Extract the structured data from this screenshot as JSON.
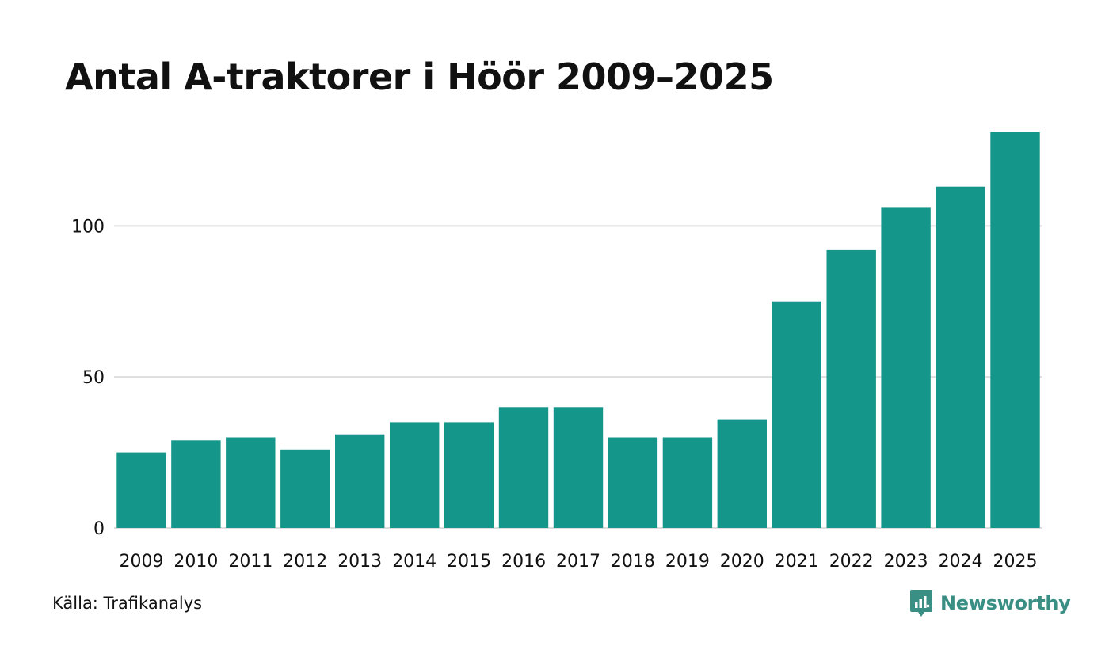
{
  "title": "Antal A-traktorer i Höör 2009–2025",
  "source": "Källa: Trafikanalys",
  "brand": {
    "name": "Newsworthy",
    "icon": "newsworthy-logo-icon",
    "color": "#3a8f84"
  },
  "colors": {
    "bar": "#14968a",
    "grid": "#dedede",
    "text": "#111111"
  },
  "chart_data": {
    "type": "bar",
    "title": "Antal A-traktorer i Höör 2009–2025",
    "xlabel": "",
    "ylabel": "",
    "categories": [
      "2009",
      "2010",
      "2011",
      "2012",
      "2013",
      "2014",
      "2015",
      "2016",
      "2017",
      "2018",
      "2019",
      "2020",
      "2021",
      "2022",
      "2023",
      "2024",
      "2025"
    ],
    "values": [
      25,
      29,
      30,
      26,
      31,
      35,
      35,
      40,
      40,
      30,
      30,
      36,
      75,
      92,
      106,
      113,
      131
    ],
    "yticks": [
      0,
      50,
      100
    ],
    "ylim": [
      0,
      131
    ],
    "grid": true
  }
}
